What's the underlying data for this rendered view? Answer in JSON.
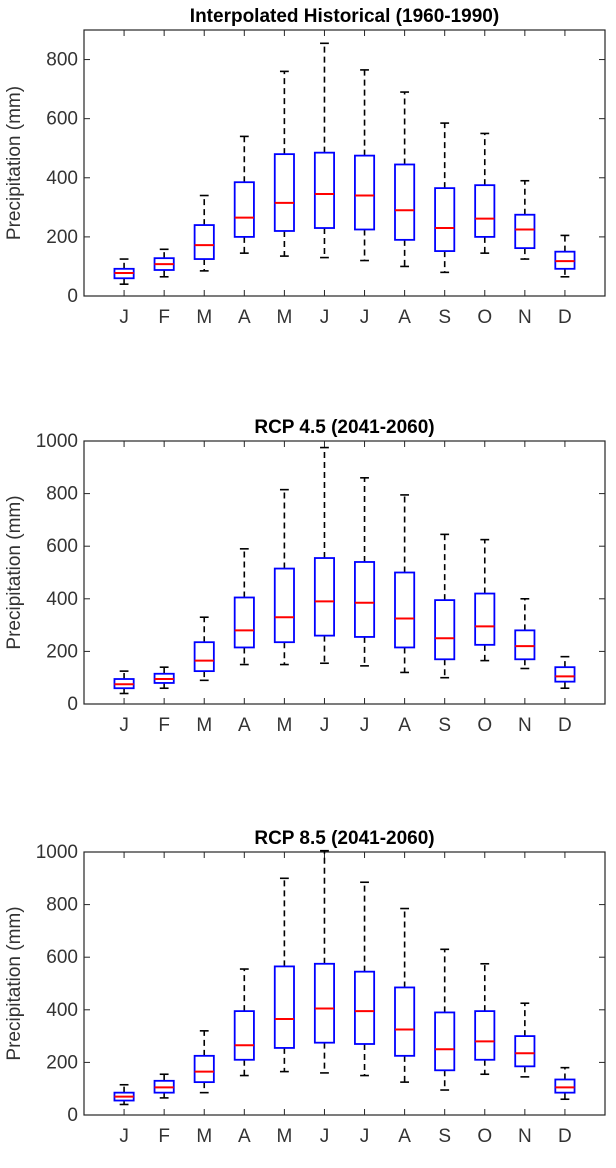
{
  "chart_data": [
    {
      "type": "box",
      "title": "Interpolated Historical (1960-1990)",
      "ylabel": "Precipitation (mm)",
      "xlabel": "",
      "ylim": [
        0,
        900
      ],
      "yticks": [
        0,
        200,
        400,
        600,
        800
      ],
      "categories": [
        "J",
        "F",
        "M",
        "A",
        "M",
        "J",
        "J",
        "A",
        "S",
        "O",
        "N",
        "D"
      ],
      "boxes": [
        {
          "min": 40,
          "q1": 60,
          "median": 78,
          "q3": 92,
          "max": 125
        },
        {
          "min": 65,
          "q1": 88,
          "median": 108,
          "q3": 128,
          "max": 158
        },
        {
          "min": 85,
          "q1": 125,
          "median": 172,
          "q3": 240,
          "max": 340
        },
        {
          "min": 145,
          "q1": 200,
          "median": 265,
          "q3": 385,
          "max": 540
        },
        {
          "min": 135,
          "q1": 220,
          "median": 315,
          "q3": 480,
          "max": 760
        },
        {
          "min": 130,
          "q1": 230,
          "median": 345,
          "q3": 485,
          "max": 855
        },
        {
          "min": 120,
          "q1": 225,
          "median": 340,
          "q3": 475,
          "max": 765
        },
        {
          "min": 100,
          "q1": 190,
          "median": 290,
          "q3": 445,
          "max": 690
        },
        {
          "min": 80,
          "q1": 152,
          "median": 230,
          "q3": 365,
          "max": 585
        },
        {
          "min": 145,
          "q1": 200,
          "median": 262,
          "q3": 375,
          "max": 550
        },
        {
          "min": 125,
          "q1": 162,
          "median": 225,
          "q3": 275,
          "max": 390
        },
        {
          "min": 65,
          "q1": 92,
          "median": 118,
          "q3": 150,
          "max": 205
        }
      ]
    },
    {
      "type": "box",
      "title": "RCP 4.5 (2041-2060)",
      "ylabel": "Precipitation (mm)",
      "xlabel": "",
      "ylim": [
        0,
        1000
      ],
      "yticks": [
        0,
        200,
        400,
        600,
        800,
        1000
      ],
      "categories": [
        "J",
        "F",
        "M",
        "A",
        "M",
        "J",
        "J",
        "A",
        "S",
        "O",
        "N",
        "D"
      ],
      "boxes": [
        {
          "min": 40,
          "q1": 60,
          "median": 75,
          "q3": 95,
          "max": 125
        },
        {
          "min": 60,
          "q1": 80,
          "median": 95,
          "q3": 115,
          "max": 140
        },
        {
          "min": 90,
          "q1": 125,
          "median": 165,
          "q3": 235,
          "max": 330
        },
        {
          "min": 150,
          "q1": 215,
          "median": 280,
          "q3": 405,
          "max": 590
        },
        {
          "min": 150,
          "q1": 235,
          "median": 330,
          "q3": 515,
          "max": 815
        },
        {
          "min": 155,
          "q1": 260,
          "median": 390,
          "q3": 555,
          "max": 975
        },
        {
          "min": 145,
          "q1": 255,
          "median": 385,
          "q3": 540,
          "max": 860
        },
        {
          "min": 120,
          "q1": 215,
          "median": 325,
          "q3": 500,
          "max": 795
        },
        {
          "min": 100,
          "q1": 170,
          "median": 250,
          "q3": 395,
          "max": 645
        },
        {
          "min": 165,
          "q1": 225,
          "median": 295,
          "q3": 420,
          "max": 625
        },
        {
          "min": 135,
          "q1": 170,
          "median": 220,
          "q3": 280,
          "max": 400
        },
        {
          "min": 60,
          "q1": 85,
          "median": 105,
          "q3": 140,
          "max": 180
        }
      ]
    },
    {
      "type": "box",
      "title": "RCP 8.5 (2041-2060)",
      "ylabel": "Precipitation (mm)",
      "xlabel": "",
      "ylim": [
        0,
        1000
      ],
      "yticks": [
        0,
        200,
        400,
        600,
        800,
        1000
      ],
      "categories": [
        "J",
        "F",
        "M",
        "A",
        "M",
        "J",
        "J",
        "A",
        "S",
        "O",
        "N",
        "D"
      ],
      "boxes": [
        {
          "min": 40,
          "q1": 55,
          "median": 70,
          "q3": 85,
          "max": 115
        },
        {
          "min": 65,
          "q1": 85,
          "median": 105,
          "q3": 130,
          "max": 155
        },
        {
          "min": 85,
          "q1": 125,
          "median": 165,
          "q3": 225,
          "max": 320
        },
        {
          "min": 150,
          "q1": 210,
          "median": 265,
          "q3": 395,
          "max": 555
        },
        {
          "min": 165,
          "q1": 255,
          "median": 365,
          "q3": 565,
          "max": 900
        },
        {
          "min": 160,
          "q1": 275,
          "median": 405,
          "q3": 575,
          "max": 1005
        },
        {
          "min": 150,
          "q1": 270,
          "median": 395,
          "q3": 545,
          "max": 885
        },
        {
          "min": 125,
          "q1": 225,
          "median": 325,
          "q3": 485,
          "max": 785
        },
        {
          "min": 95,
          "q1": 170,
          "median": 250,
          "q3": 390,
          "max": 630
        },
        {
          "min": 155,
          "q1": 210,
          "median": 280,
          "q3": 395,
          "max": 575
        },
        {
          "min": 145,
          "q1": 185,
          "median": 235,
          "q3": 300,
          "max": 425
        },
        {
          "min": 60,
          "q1": 85,
          "median": 105,
          "q3": 135,
          "max": 180
        }
      ]
    }
  ],
  "colors": {
    "box": "#0000ff",
    "median": "#ff0000",
    "whisker": "#000000",
    "axis": "#262626",
    "tick_text": "#333333"
  }
}
